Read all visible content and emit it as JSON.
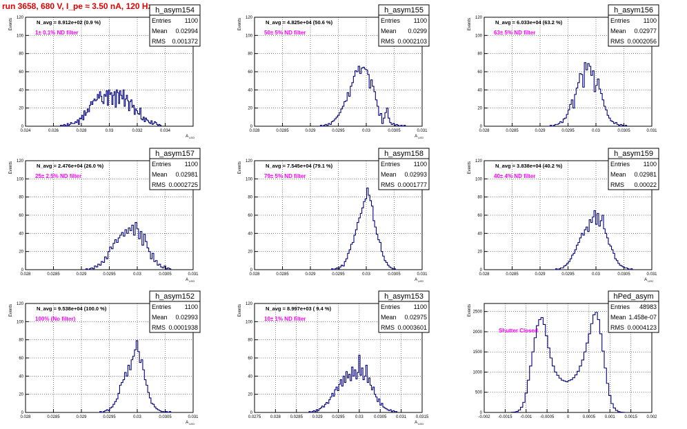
{
  "run_title": "run 3658,   680 V, I_pe ≈ 3.50 nA, 120 Hz",
  "stats_labels": {
    "entries": "Entries",
    "mean": "Mean",
    "rms": "RMS"
  },
  "colors": {
    "title": "#e00000",
    "histogram": "#000080",
    "filter_label": "#ff00ff",
    "grid": "#000000"
  },
  "chart_data": [
    {
      "type": "histogram",
      "name": "h_asym154",
      "stats": {
        "entries": "1100",
        "mean": "0.02994",
        "rms": "0.001372"
      },
      "navg_label": "N_avg = 8.912e+02 (0.9 %)",
      "filter_label": "1± 0.1% ND filter",
      "ylabel": "Events",
      "xlabel": "A_LED",
      "xlim": [
        0.024,
        0.036
      ],
      "ylim": [
        0,
        120
      ],
      "xticks": [
        "0.024",
        "0.026",
        "0.028",
        "0.03",
        "0.032",
        "0.034"
      ],
      "xtick_values": [
        0.024,
        0.026,
        0.028,
        0.03,
        0.032,
        0.034
      ],
      "yticks": [
        0,
        20,
        40,
        60,
        80,
        100,
        120
      ],
      "bin_range": [
        0.0265,
        0.0337
      ],
      "counts": [
        1,
        1,
        0,
        2,
        1,
        0,
        3,
        1,
        2,
        4,
        3,
        3,
        3,
        5,
        4,
        7,
        2,
        9,
        8,
        12,
        7,
        17,
        12,
        15,
        19,
        16,
        23,
        27,
        24,
        28,
        30,
        28,
        29,
        35,
        31,
        38,
        33,
        27,
        25,
        35,
        33,
        39,
        23,
        40,
        35,
        37,
        24,
        34,
        38,
        21,
        40,
        37,
        25,
        39,
        34,
        30,
        40,
        22,
        30,
        34,
        28,
        17,
        27,
        29,
        21,
        23,
        13,
        19,
        17,
        14,
        13,
        20,
        8,
        7,
        10,
        5,
        9,
        7,
        6,
        4,
        3,
        6,
        2,
        3,
        5,
        4,
        2,
        1,
        2,
        1
      ]
    },
    {
      "type": "histogram",
      "name": "h_asym155",
      "stats": {
        "entries": "1100",
        "mean": "0.0299",
        "rms": "0.0002103"
      },
      "navg_label": "N_avg = 4.825e+04 (50.6 %)",
      "filter_label": "50± 5% ND filter",
      "ylabel": "Events",
      "xlabel": "A_LED",
      "xlim": [
        0.028,
        0.031
      ],
      "ylim": [
        0,
        120
      ],
      "xticks": [
        "0.028",
        "0.0285",
        "0.029",
        "0.0295",
        "0.03",
        "0.0305",
        "0.031"
      ],
      "xtick_values": [
        0.028,
        0.0285,
        0.029,
        0.0295,
        0.03,
        0.0305,
        0.031
      ],
      "yticks": [
        0,
        20,
        40,
        60,
        80,
        100,
        120
      ],
      "bin_range": [
        0.02915,
        0.0307
      ],
      "counts": [
        0,
        1,
        0,
        1,
        2,
        1,
        3,
        2,
        5,
        6,
        8,
        10,
        12,
        15,
        19,
        22,
        27,
        28,
        37,
        33,
        44,
        48,
        55,
        61,
        60,
        66,
        58,
        64,
        65,
        63,
        62,
        57,
        42,
        51,
        44,
        38,
        29,
        22,
        12,
        14,
        3,
        9,
        15,
        20,
        9,
        4,
        2,
        3,
        1,
        2,
        1,
        0,
        1,
        0,
        1
      ]
    },
    {
      "type": "histogram",
      "name": "h_asym156",
      "stats": {
        "entries": "1100",
        "mean": "0.02977",
        "rms": "0.0002056"
      },
      "navg_label": "N_avg = 6.033e+04 (63.2 %)",
      "filter_label": "63± 5% ND filter",
      "ylabel": "Events",
      "xlabel": "",
      "xlim": [
        0.028,
        0.031
      ],
      "ylim": [
        0,
        120
      ],
      "xticks": [
        "0.028",
        "0.0285",
        "0.029",
        "0.0295",
        "0.03",
        "0.0305",
        "0.031"
      ],
      "xtick_values": [
        0.028,
        0.0285,
        0.029,
        0.0295,
        0.03,
        0.0305,
        0.031
      ],
      "yticks": [
        0,
        20,
        40,
        60,
        80,
        100,
        120
      ],
      "bin_range": [
        0.02915,
        0.03055
      ],
      "counts": [
        0,
        1,
        0,
        1,
        2,
        2,
        3,
        5,
        4,
        8,
        9,
        13,
        18,
        24,
        29,
        20,
        35,
        42,
        48,
        58,
        57,
        43,
        70,
        62,
        69,
        66,
        56,
        61,
        38,
        45,
        52,
        41,
        36,
        29,
        22,
        18,
        12,
        9,
        6,
        5,
        3,
        4,
        2,
        1,
        2,
        1,
        0,
        1
      ]
    },
    {
      "type": "histogram",
      "name": "h_asym157",
      "stats": {
        "entries": "1100",
        "mean": "0.02981",
        "rms": "0.0002725"
      },
      "navg_label": "N_avg = 2.476e+04 (26.0 %)",
      "filter_label": "25± 2.5% ND filter",
      "ylabel": "Events",
      "xlabel": "A_LED",
      "xlim": [
        0.028,
        0.031
      ],
      "ylim": [
        0,
        120
      ],
      "xticks": [
        "0.028",
        "0.0285",
        "0.029",
        "0.0295",
        "0.03",
        "0.0305",
        "0.031"
      ],
      "xtick_values": [
        0.028,
        0.0285,
        0.029,
        0.0295,
        0.03,
        0.0305,
        0.031
      ],
      "yticks": [
        0,
        20,
        40,
        60,
        80,
        100,
        120
      ],
      "bin_range": [
        0.02905,
        0.0306
      ],
      "counts": [
        0,
        1,
        0,
        1,
        2,
        1,
        4,
        3,
        6,
        5,
        9,
        8,
        14,
        12,
        20,
        25,
        23,
        29,
        33,
        30,
        35,
        38,
        41,
        37,
        44,
        40,
        46,
        43,
        49,
        38,
        52,
        45,
        34,
        42,
        27,
        39,
        31,
        24,
        20,
        12,
        18,
        9,
        10,
        5,
        6,
        3,
        2,
        4,
        1,
        2,
        1
      ]
    },
    {
      "type": "histogram",
      "name": "h_asym158",
      "stats": {
        "entries": "1100",
        "mean": "0.02993",
        "rms": "0.0001777"
      },
      "navg_label": "N_avg = 7.545e+04 (79.1 %)",
      "filter_label": "79± 5% ND filter",
      "ylabel": "Events",
      "xlabel": "A_LED",
      "xlim": [
        0.028,
        0.031
      ],
      "ylim": [
        0,
        120
      ],
      "xticks": [
        "0.028",
        "0.0285",
        "0.029",
        "0.0295",
        "0.03",
        "0.0305",
        "0.031"
      ],
      "xtick_values": [
        0.028,
        0.0285,
        0.029,
        0.0295,
        0.03,
        0.0305,
        0.031
      ],
      "yticks": [
        0,
        20,
        40,
        60,
        80,
        100,
        120
      ],
      "bin_range": [
        0.02935,
        0.03055
      ],
      "counts": [
        0,
        1,
        0,
        1,
        2,
        1,
        3,
        5,
        4,
        9,
        12,
        18,
        22,
        28,
        30,
        38,
        44,
        52,
        57,
        62,
        68,
        75,
        78,
        90,
        82,
        76,
        70,
        54,
        47,
        39,
        33,
        30,
        20,
        15,
        10,
        8,
        5,
        3,
        2,
        1,
        1,
        0
      ]
    },
    {
      "type": "histogram",
      "name": "h_asym159",
      "stats": {
        "entries": "1100",
        "mean": "0.02981",
        "rms": "0.00022"
      },
      "navg_label": "N_avg = 3.838e+04 (40.2 %)",
      "filter_label": "40± 4% ND filter",
      "ylabel": "Events",
      "xlabel": "A_LED",
      "xlim": [
        0.028,
        0.031
      ],
      "ylim": [
        0,
        120
      ],
      "xticks": [
        "0.028",
        "0.0285",
        "0.029",
        "0.0295",
        "0.03",
        "0.0305",
        "0.031"
      ],
      "xtick_values": [
        0.028,
        0.0285,
        0.029,
        0.0295,
        0.03,
        0.0305,
        0.031
      ],
      "yticks": [
        0,
        20,
        40,
        60,
        80,
        100,
        120
      ],
      "bin_range": [
        0.02925,
        0.03065
      ],
      "counts": [
        0,
        1,
        0,
        1,
        2,
        2,
        4,
        5,
        7,
        9,
        12,
        16,
        18,
        22,
        27,
        30,
        35,
        40,
        38,
        44,
        47,
        42,
        55,
        52,
        58,
        65,
        50,
        62,
        48,
        54,
        60,
        45,
        40,
        35,
        28,
        26,
        22,
        18,
        12,
        10,
        7,
        5,
        4,
        3,
        2,
        2,
        1,
        0,
        1
      ]
    },
    {
      "type": "histogram",
      "name": "h_asym152",
      "stats": {
        "entries": "1100",
        "mean": "0.02993",
        "rms": "0.0001938"
      },
      "navg_label": "N_avg = 9.538e+04 (100.0 %)",
      "filter_label": "100% (No filter)",
      "ylabel": "Events",
      "xlabel": "A_LED",
      "xlim": [
        0.028,
        0.031
      ],
      "ylim": [
        0,
        120
      ],
      "xticks": [
        "0.028",
        "0.0285",
        "0.029",
        "0.0295",
        "0.03",
        "0.0305",
        "0.031"
      ],
      "xtick_values": [
        0.028,
        0.0285,
        0.029,
        0.0295,
        0.03,
        0.0305,
        0.031
      ],
      "yticks": [
        0,
        20,
        40,
        60,
        80,
        100,
        120
      ],
      "bin_range": [
        0.0293,
        0.0306
      ],
      "counts": [
        0,
        1,
        0,
        1,
        2,
        3,
        2,
        5,
        6,
        9,
        12,
        15,
        21,
        30,
        33,
        36,
        44,
        40,
        52,
        47,
        58,
        62,
        69,
        79,
        67,
        55,
        58,
        47,
        36,
        30,
        22,
        16,
        10,
        9,
        6,
        4,
        3,
        2,
        1,
        1,
        0,
        1,
        0,
        1
      ]
    },
    {
      "type": "histogram",
      "name": "h_asym153",
      "stats": {
        "entries": "1100",
        "mean": "0.02975",
        "rms": "0.0003601"
      },
      "navg_label": "N_avg = 8.997e+03 ( 9.4 %)",
      "filter_label": "10± 1% ND filter",
      "ylabel": "Events",
      "xlabel": "A_LED",
      "xlim": [
        0.0275,
        0.0315
      ],
      "ylim": [
        0,
        120
      ],
      "xticks": [
        "0.0275",
        "0.028",
        "0.0285",
        "0.029",
        "0.0295",
        "0.03",
        "0.0305",
        "0.031",
        "0.0315"
      ],
      "xtick_values": [
        0.0275,
        0.028,
        0.0285,
        0.029,
        0.0295,
        0.03,
        0.0305,
        0.031,
        0.0315
      ],
      "yticks": [
        0,
        20,
        40,
        60,
        80,
        100,
        120
      ],
      "bin_range": [
        0.0288,
        0.0309
      ],
      "counts": [
        1,
        0,
        1,
        2,
        1,
        3,
        2,
        4,
        5,
        7,
        6,
        9,
        11,
        10,
        14,
        17,
        21,
        18,
        25,
        28,
        24,
        31,
        36,
        29,
        40,
        33,
        45,
        38,
        42,
        35,
        50,
        40,
        47,
        37,
        44,
        63,
        41,
        49,
        36,
        40,
        52,
        33,
        38,
        30,
        25,
        28,
        20,
        17,
        12,
        15,
        8,
        10,
        6,
        5,
        4,
        3,
        2,
        3,
        1,
        2,
        1,
        1
      ]
    },
    {
      "type": "histogram",
      "name": "hPed_asym",
      "stats": {
        "entries": "48983",
        "mean": "1.458e-07",
        "rms": "0.0004123"
      },
      "navg_label": "",
      "filter_label": "Shutter Closed",
      "ylabel": "Events",
      "xlabel": "",
      "xlim": [
        -0.002,
        0.002
      ],
      "ylim": [
        0,
        2700
      ],
      "xticks": [
        "-0.002",
        "-0.0015",
        "-0.001",
        "-0.0005",
        "0",
        "0.0005",
        "0.001",
        "0.0015",
        "0.002"
      ],
      "xtick_values": [
        -0.002,
        -0.0015,
        -0.001,
        -0.0005,
        0,
        0.0005,
        0.001,
        0.0015,
        0.002
      ],
      "yticks": [
        0,
        500,
        1000,
        1500,
        2000,
        2500
      ],
      "bin_range": [
        -0.00135,
        0.00135
      ],
      "counts": [
        5,
        10,
        25,
        60,
        130,
        250,
        480,
        800,
        1150,
        1500,
        1850,
        2150,
        2300,
        2350,
        2180,
        1900,
        1600,
        1350,
        1150,
        1000,
        920,
        850,
        800,
        780,
        760,
        790,
        810,
        860,
        930,
        1020,
        1150,
        1300,
        1500,
        1720,
        1950,
        2200,
        2420,
        2480,
        2300,
        1950,
        1520,
        1100,
        720,
        420,
        220,
        110,
        50,
        20,
        8,
        3
      ]
    }
  ]
}
